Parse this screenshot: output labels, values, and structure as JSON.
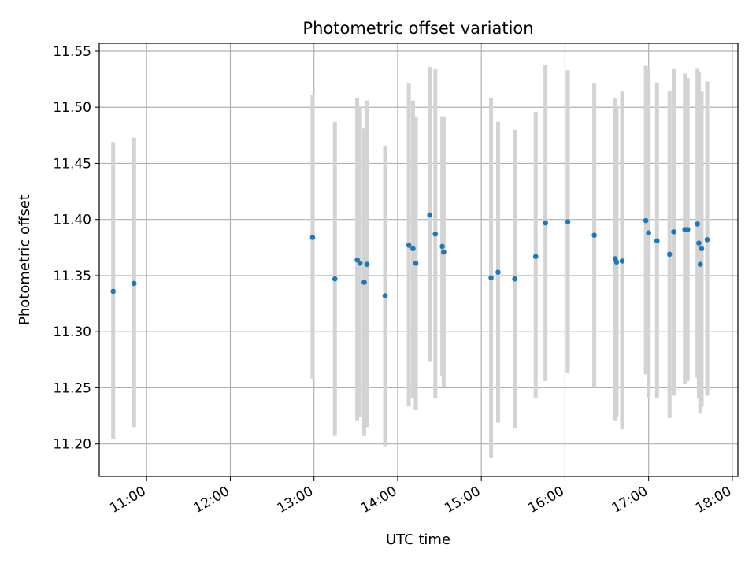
{
  "chart_data": {
    "type": "scatter",
    "title": "Photometric offset variation",
    "xlabel": "UTC time",
    "ylabel": "Photometric offset",
    "grid": true,
    "x_tick_labels": [
      "11:00",
      "12:00",
      "13:00",
      "14:00",
      "15:00",
      "16:00",
      "17:00",
      "18:00"
    ],
    "y_tick_labels": [
      "11.20",
      "11.25",
      "11.30",
      "11.35",
      "11.40",
      "11.45",
      "11.50",
      "11.55"
    ],
    "xlim": [
      "10:26",
      "18:04"
    ],
    "ylim": [
      11.171,
      11.557
    ],
    "colors": {
      "points": "#1f77b4",
      "errorbars": "#d3d3d3"
    },
    "series": [
      {
        "points": [
          {
            "x": "10:36",
            "y": 11.336,
            "ylo": 11.204,
            "yhi": 11.469
          },
          {
            "x": "10:51",
            "y": 11.343,
            "ylo": 11.215,
            "yhi": 11.473
          },
          {
            "x": "12:59",
            "y": 11.384,
            "ylo": 11.258,
            "yhi": 11.511
          },
          {
            "x": "13:15",
            "y": 11.347,
            "ylo": 11.207,
            "yhi": 11.487
          },
          {
            "x": "13:31",
            "y": 11.364,
            "ylo": 11.221,
            "yhi": 11.508
          },
          {
            "x": "13:33",
            "y": 11.361,
            "ylo": 11.224,
            "yhi": 11.5
          },
          {
            "x": "13:36",
            "y": 11.344,
            "ylo": 11.207,
            "yhi": 11.481
          },
          {
            "x": "13:38",
            "y": 11.36,
            "ylo": 11.215,
            "yhi": 11.506
          },
          {
            "x": "13:51",
            "y": 11.332,
            "ylo": 11.198,
            "yhi": 11.466
          },
          {
            "x": "14:08",
            "y": 11.377,
            "ylo": 11.234,
            "yhi": 11.521
          },
          {
            "x": "14:11",
            "y": 11.374,
            "ylo": 11.241,
            "yhi": 11.506
          },
          {
            "x": "14:13",
            "y": 11.361,
            "ylo": 11.23,
            "yhi": 11.492
          },
          {
            "x": "14:23",
            "y": 11.404,
            "ylo": 11.273,
            "yhi": 11.536
          },
          {
            "x": "14:27",
            "y": 11.387,
            "ylo": 11.241,
            "yhi": 11.534
          },
          {
            "x": "14:32",
            "y": 11.376,
            "ylo": 11.26,
            "yhi": 11.492
          },
          {
            "x": "14:33",
            "y": 11.371,
            "ylo": 11.251,
            "yhi": 11.491
          },
          {
            "x": "15:07",
            "y": 11.348,
            "ylo": 11.188,
            "yhi": 11.508
          },
          {
            "x": "15:12",
            "y": 11.353,
            "ylo": 11.219,
            "yhi": 11.487
          },
          {
            "x": "15:24",
            "y": 11.347,
            "ylo": 11.214,
            "yhi": 11.48
          },
          {
            "x": "15:39",
            "y": 11.367,
            "ylo": 11.241,
            "yhi": 11.496
          },
          {
            "x": "15:46",
            "y": 11.397,
            "ylo": 11.256,
            "yhi": 11.538
          },
          {
            "x": "16:02",
            "y": 11.398,
            "ylo": 11.263,
            "yhi": 11.533
          },
          {
            "x": "16:21",
            "y": 11.386,
            "ylo": 11.25,
            "yhi": 11.521
          },
          {
            "x": "16:36",
            "y": 11.365,
            "ylo": 11.221,
            "yhi": 11.508
          },
          {
            "x": "16:37",
            "y": 11.362,
            "ylo": 11.224,
            "yhi": 11.5
          },
          {
            "x": "16:41",
            "y": 11.363,
            "ylo": 11.213,
            "yhi": 11.514
          },
          {
            "x": "16:58",
            "y": 11.399,
            "ylo": 11.262,
            "yhi": 11.537
          },
          {
            "x": "17:00",
            "y": 11.388,
            "ylo": 11.241,
            "yhi": 11.535
          },
          {
            "x": "17:06",
            "y": 11.381,
            "ylo": 11.241,
            "yhi": 11.522
          },
          {
            "x": "17:15",
            "y": 11.369,
            "ylo": 11.223,
            "yhi": 11.515
          },
          {
            "x": "17:18",
            "y": 11.389,
            "ylo": 11.243,
            "yhi": 11.534
          },
          {
            "x": "17:26",
            "y": 11.391,
            "ylo": 11.253,
            "yhi": 11.53
          },
          {
            "x": "17:28",
            "y": 11.391,
            "ylo": 11.256,
            "yhi": 11.526
          },
          {
            "x": "17:35",
            "y": 11.396,
            "ylo": 11.259,
            "yhi": 11.535
          },
          {
            "x": "17:36",
            "y": 11.379,
            "ylo": 11.241,
            "yhi": 11.531
          },
          {
            "x": "17:37",
            "y": 11.36,
            "ylo": 11.227,
            "yhi": 11.494
          },
          {
            "x": "17:38",
            "y": 11.374,
            "ylo": 11.233,
            "yhi": 11.514
          },
          {
            "x": "17:42",
            "y": 11.382,
            "ylo": 11.243,
            "yhi": 11.523
          }
        ]
      }
    ]
  }
}
